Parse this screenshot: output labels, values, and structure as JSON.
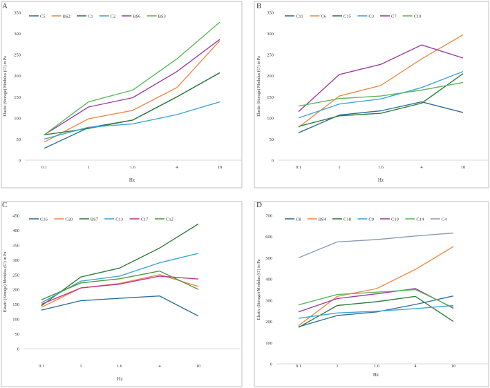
{
  "chart_data": [
    {
      "type": "line",
      "panel_label": "A",
      "categories": [
        "0.1",
        "1",
        "1.6",
        "4",
        "10"
      ],
      "xlabel": "Hz",
      "ylabel": "Elastic (Storage) Modulus (G') in Pa",
      "ylim": [
        0,
        350
      ],
      "yticks": [
        0,
        50,
        100,
        150,
        200,
        250,
        300,
        350
      ],
      "grid": false,
      "legend": "top-left",
      "series": [
        {
          "name": "C5",
          "color": "#2e6f9e",
          "values": [
            28,
            77,
            95,
            150,
            207
          ]
        },
        {
          "name": "BS2",
          "color": "#ed8a48",
          "values": [
            43,
            98,
            118,
            172,
            283
          ]
        },
        {
          "name": "C1",
          "color": "#2f7d3c",
          "values": [
            60,
            75,
            95,
            150,
            207
          ]
        },
        {
          "name": "C2",
          "color": "#3da5d9",
          "values": [
            50,
            78,
            86,
            108,
            138
          ]
        },
        {
          "name": "BS6",
          "color": "#9b3fa0",
          "values": [
            60,
            126,
            148,
            210,
            286
          ]
        },
        {
          "name": "BS3",
          "color": "#5cb85c",
          "values": [
            60,
            138,
            166,
            240,
            327
          ]
        }
      ]
    },
    {
      "type": "line",
      "panel_label": "B",
      "categories": [
        "0.1",
        "1",
        "1.6",
        "4",
        "10"
      ],
      "xlabel": "Hz",
      "ylabel": "Elastic (Storage) Modulus (G') in Pa",
      "ylim": [
        0,
        350
      ],
      "yticks": [
        0,
        50,
        100,
        150,
        200,
        250,
        300,
        350
      ],
      "grid": false,
      "legend": "top-left",
      "series": [
        {
          "name": "C11",
          "color": "#2e6f9e",
          "values": [
            65,
            107,
            117,
            138,
            113
          ]
        },
        {
          "name": "C6",
          "color": "#ed8a48",
          "values": [
            78,
            152,
            177,
            240,
            297
          ]
        },
        {
          "name": "C15",
          "color": "#2f7d3c",
          "values": [
            80,
            105,
            111,
            135,
            205
          ]
        },
        {
          "name": "C3",
          "color": "#3da5d9",
          "values": [
            100,
            133,
            145,
            172,
            210
          ]
        },
        {
          "name": "C7",
          "color": "#9b3fa0",
          "values": [
            115,
            203,
            227,
            273,
            242
          ]
        },
        {
          "name": "C10",
          "color": "#5cb85c",
          "values": [
            128,
            146,
            152,
            166,
            184
          ]
        }
      ]
    },
    {
      "type": "line",
      "panel_label": "C",
      "categories": [
        "0.1",
        "1",
        "1.6",
        "4",
        "10"
      ],
      "xlabel": "Hz",
      "ylabel": "Elastic (Storage) Modulus (G') in Pa",
      "ylim": [
        0,
        450
      ],
      "yticks": [
        0,
        50,
        100,
        150,
        200,
        250,
        300,
        350,
        400,
        450
      ],
      "grid": false,
      "legend": "top-left",
      "series": [
        {
          "name": "C16",
          "color": "#2e6f9e",
          "values": [
            130,
            162,
            170,
            178,
            110
          ]
        },
        {
          "name": "C20",
          "color": "#ed8a48",
          "values": [
            140,
            205,
            220,
            250,
            210
          ]
        },
        {
          "name": "BS7",
          "color": "#2f7d3c",
          "values": [
            145,
            242,
            272,
            340,
            421
          ]
        },
        {
          "name": "C13",
          "color": "#3da5d9",
          "values": [
            155,
            228,
            245,
            290,
            322
          ]
        },
        {
          "name": "C17",
          "color": "#c0368f",
          "values": [
            150,
            205,
            218,
            245,
            235
          ]
        },
        {
          "name": "C12",
          "color": "#4e9a3a",
          "values": [
            165,
            222,
            236,
            262,
            200
          ]
        }
      ]
    },
    {
      "type": "line",
      "panel_label": "D",
      "categories": [
        "0.1",
        "1",
        "1.6",
        "4",
        "10"
      ],
      "xlabel": "Hz",
      "ylabel": "Elastic (Storage) Modulus (G') in Pa",
      "ylim": [
        0,
        700
      ],
      "yticks": [
        0,
        100,
        200,
        300,
        400,
        500,
        600,
        700
      ],
      "grid": false,
      "legend": "top-left",
      "series": [
        {
          "name": "C8",
          "color": "#2e6f9e",
          "values": [
            175,
            228,
            245,
            280,
            320
          ]
        },
        {
          "name": "BS4",
          "color": "#ed8a48",
          "values": [
            180,
            318,
            355,
            445,
            553
          ]
        },
        {
          "name": "C18",
          "color": "#2f7d3c",
          "values": [
            172,
            275,
            293,
            318,
            200
          ]
        },
        {
          "name": "C9",
          "color": "#3da5d9",
          "values": [
            215,
            240,
            248,
            260,
            275
          ]
        },
        {
          "name": "C19",
          "color": "#9b3fa0",
          "values": [
            245,
            308,
            330,
            355,
            262
          ]
        },
        {
          "name": "C14",
          "color": "#5cb85c",
          "values": [
            278,
            327,
            338,
            350,
            265
          ]
        },
        {
          "name": "C4",
          "color": "#8a9bb5",
          "values": [
            500,
            575,
            586,
            603,
            617
          ]
        }
      ]
    }
  ]
}
